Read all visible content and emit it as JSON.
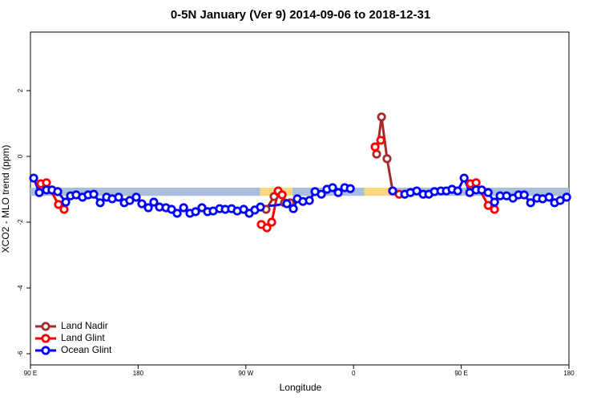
{
  "chart_data": {
    "type": "line",
    "title": "0-5N January (Ver 9)   2014-09-06 to 2018-12-31",
    "x_label": "Longitude",
    "y_label": "XCO2 - MLO trend (ppm)",
    "xlim": [
      90,
      540
    ],
    "ylim": [
      -6.34,
      3.78
    ],
    "xticks": [
      {
        "value": 90,
        "label": "90 E"
      },
      180,
      {
        "value": 270,
        "label": "90 W"
      },
      {
        "value": 360,
        "label": "0"
      },
      {
        "value": 450,
        "label": "90 E"
      },
      {
        "value": 540,
        "label": "180"
      }
    ],
    "yticks": [
      -6,
      -4,
      -2,
      0,
      2
    ],
    "legend": "bottom-left",
    "band": {
      "ylim": [
        -1.2,
        -0.95
      ],
      "segments": [
        {
          "from": 90,
          "to": 282,
          "color": "#a9bedc"
        },
        {
          "from": 282,
          "to": 309,
          "color": "#f9d77e"
        },
        {
          "from": 309,
          "to": 369,
          "color": "#a9bedc"
        },
        {
          "from": 369,
          "to": 393,
          "color": "#f9d77e"
        },
        {
          "from": 393,
          "to": 540,
          "color": "#a9bedc"
        }
      ]
    },
    "series": [
      {
        "name": "Land Nadir",
        "color": "#a52a2a",
        "x": [
          286.9,
          293.6,
          297,
          302.3,
          307,
          null,
          379.3,
          383.4,
          388,
          392.7
        ],
        "values": [
          -1.61,
          -1.22,
          -1.07,
          -1.41,
          -1.41,
          null,
          0.07,
          1.2,
          -0.07,
          -1.05
        ]
      },
      {
        "name": "Land Glint",
        "color": "#ff0000",
        "x": [
          98.7,
          103.4,
          113.4,
          118.1,
          null,
          282.9,
          287.6,
          291.6,
          297,
          300.3,
          null,
          378,
          382.7,
          null,
          398.1,
          null,
          457.7,
          462.4,
          472.5,
          477.8
        ],
        "values": [
          -0.83,
          -0.8,
          -1.46,
          -1.61,
          null,
          -2.07,
          -2.17,
          -2.0,
          -1.05,
          -1.17,
          null,
          0.29,
          0.49,
          null,
          -1.15,
          null,
          -0.83,
          -0.8,
          -1.49,
          -1.61
        ]
      },
      {
        "name": "Ocean Glint",
        "color": "#0000ff",
        "x": [
          92.7,
          97.4,
          103.4,
          108,
          112.8,
          119.5,
          123.5,
          128.2,
          133.5,
          138.2,
          142.9,
          148.3,
          153.6,
          158.3,
          163.7,
          168.4,
          173,
          178.4,
          183.1,
          188.5,
          193.1,
          197.8,
          203.2,
          207.9,
          212.6,
          218,
          223.3,
          228,
          233.3,
          238,
          242.7,
          248.1,
          252.8,
          258.1,
          262.8,
          268.2,
          272.9,
          277.5,
          282.2,
          304.3,
          309.7,
          313,
          317.7,
          323.1,
          327.8,
          333.1,
          337.8,
          342.5,
          347.2,
          352.6,
          357.3,
          null,
          392.7,
          402.8,
          407.5,
          412.8,
          418.2,
          422.9,
          427.6,
          433,
          437.6,
          442.3,
          447,
          452.4,
          457.1,
          462.4,
          467.1,
          472.5,
          477.8,
          482.5,
          487.9,
          493.2,
          497.9,
          502.6,
          508,
          513.3,
          518,
          523.4,
          528,
          532.7,
          538.1
        ],
        "values": [
          -0.66,
          -1.1,
          -1.02,
          -1.02,
          -1.07,
          -1.39,
          -1.2,
          -1.17,
          -1.24,
          -1.17,
          -1.15,
          -1.41,
          -1.24,
          -1.29,
          -1.24,
          -1.41,
          -1.34,
          -1.24,
          -1.44,
          -1.56,
          -1.39,
          -1.54,
          -1.56,
          -1.61,
          -1.73,
          -1.56,
          -1.73,
          -1.68,
          -1.56,
          -1.68,
          -1.66,
          -1.59,
          -1.61,
          -1.59,
          -1.66,
          -1.61,
          -1.73,
          -1.63,
          -1.54,
          -1.44,
          -1.59,
          -1.29,
          -1.37,
          -1.34,
          -1.07,
          -1.15,
          -1.0,
          -0.95,
          -1.1,
          -0.95,
          -0.98,
          null,
          -1.05,
          -1.15,
          -1.1,
          -1.05,
          -1.15,
          -1.15,
          -1.07,
          -1.05,
          -1.05,
          -1.0,
          -1.05,
          -0.66,
          -1.1,
          -1.02,
          -1.02,
          -1.1,
          -1.39,
          -1.2,
          -1.2,
          -1.27,
          -1.17,
          -1.17,
          -1.41,
          -1.27,
          -1.29,
          -1.24,
          -1.41,
          -1.34,
          -1.24
        ]
      }
    ]
  }
}
